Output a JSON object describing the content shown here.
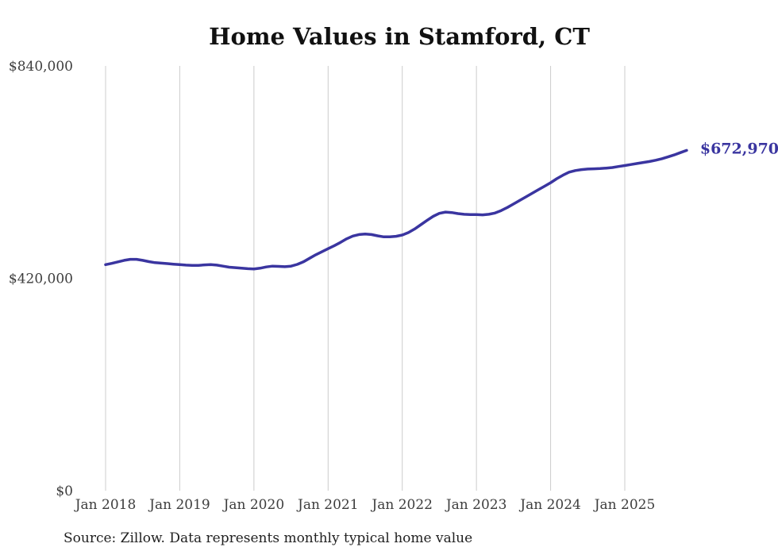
{
  "chart_data": {
    "type": "line",
    "title": "Home Values in Stamford, CT",
    "xlabel": "",
    "ylabel": "",
    "y_max": 840000,
    "y_ticks": [
      {
        "label": "$840,000",
        "value": 840000
      },
      {
        "label": "$420,000",
        "value": 420000
      },
      {
        "label": "$0",
        "value": 0
      }
    ],
    "x_tick_labels": [
      "Jan 2018",
      "Jan 2019",
      "Jan 2020",
      "Jan 2021",
      "Jan 2022",
      "Jan 2023",
      "Jan 2024",
      "Jan 2025"
    ],
    "x_tick_month_indices": [
      0,
      12,
      24,
      36,
      48,
      60,
      72,
      84
    ],
    "grid": "vertical-only",
    "legend_position": "none",
    "line_color": "#3a35a0",
    "grid_color": "#cccccc",
    "end_label": "$672,970",
    "end_value": 672970,
    "series": [
      {
        "name": "Monthly typical home value",
        "start_month": "2018-01",
        "end_month": "2025-11",
        "frequency": "monthly",
        "values": [
          447000,
          449500,
          452500,
          455500,
          457500,
          457500,
          455500,
          453000,
          451000,
          450000,
          449000,
          448000,
          447000,
          446000,
          445500,
          445500,
          446500,
          447000,
          446000,
          444000,
          442000,
          441000,
          440000,
          439000,
          438500,
          440000,
          442500,
          444000,
          443500,
          443000,
          444000,
          447500,
          452500,
          459500,
          466500,
          472500,
          478500,
          484500,
          491000,
          498000,
          503500,
          506500,
          507500,
          506500,
          504000,
          502000,
          502000,
          503000,
          505500,
          510500,
          517500,
          526000,
          534500,
          542500,
          548500,
          551000,
          550000,
          548000,
          546500,
          546000,
          546000,
          545500,
          546500,
          549000,
          554000,
          560000,
          567000,
          574000,
          581000,
          588000,
          595000,
          602000,
          609000,
          617000,
          624000,
          630000,
          633000,
          635000,
          636000,
          636500,
          637000,
          638000,
          639000,
          641000,
          643000,
          645000,
          647000,
          649000,
          651000,
          653500,
          656500,
          660000,
          664000,
          668500,
          672970
        ]
      }
    ]
  },
  "footer": {
    "source": "Source: Zillow. Data represents monthly typical home value"
  }
}
